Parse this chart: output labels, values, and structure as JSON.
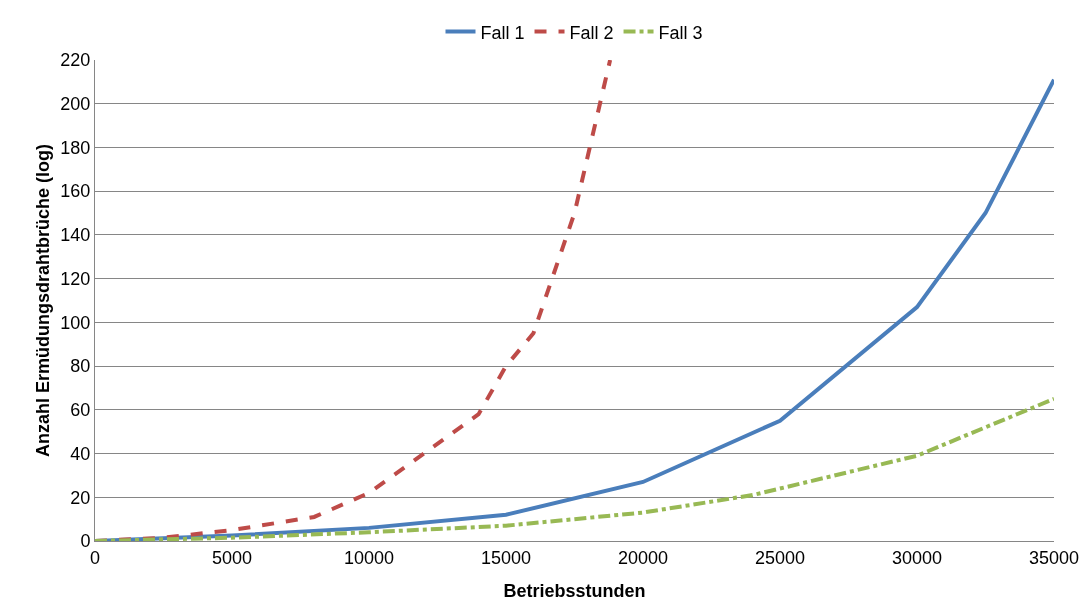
{
  "chart_data": {
    "type": "line",
    "xlabel": "Betriebsstunden",
    "ylabel": "Anzahl Ermüdungsdrahtbrüche (log)",
    "xlim": [
      0,
      35000
    ],
    "xticks": [
      0,
      5000,
      10000,
      15000,
      20000,
      25000,
      30000,
      35000
    ],
    "ylim": [
      0,
      220
    ],
    "yticks": [
      0,
      20,
      40,
      60,
      80,
      100,
      120,
      140,
      160,
      180,
      200,
      220
    ],
    "grid": "y",
    "legend": "top",
    "marker": "none",
    "series": [
      {
        "name": "Fall 1",
        "color": "#4a7ebb",
        "line_style": "solid",
        "x": [
          0,
          5000,
          10000,
          15000,
          20000,
          25000,
          30000,
          32500,
          35000
        ],
        "values": [
          0,
          2.5,
          6,
          12,
          27,
          55,
          107,
          150,
          211
        ]
      },
      {
        "name": "Fall 2",
        "color": "#be4b48",
        "line_style": "dashed",
        "x": [
          0,
          2500,
          5000,
          8000,
          10000,
          12000,
          14000,
          15000,
          16000,
          17500,
          18800
        ],
        "values": [
          0,
          1.5,
          5,
          11,
          22,
          40,
          58,
          80,
          95,
          150,
          220
        ]
      },
      {
        "name": "Fall 3",
        "color": "#98b954",
        "line_style": "dashdot",
        "x": [
          0,
          5000,
          10000,
          15000,
          20000,
          24000,
          30000,
          35000
        ],
        "values": [
          0,
          1.5,
          4,
          7,
          13,
          21,
          39,
          65
        ]
      }
    ]
  }
}
